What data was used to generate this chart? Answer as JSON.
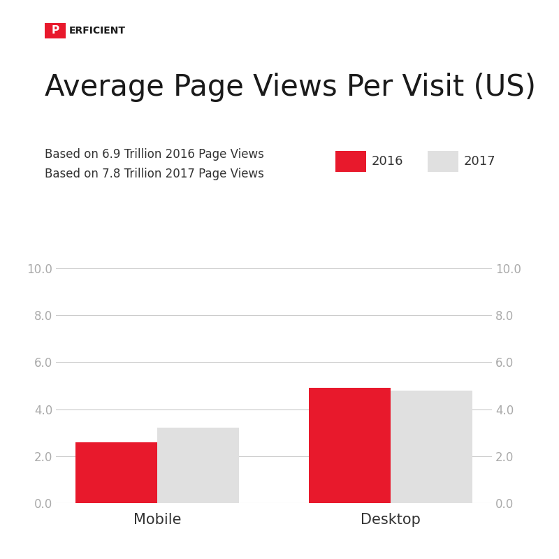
{
  "title": "Average Page Views Per Visit (US)",
  "subtitle1": "Based on 6.9 Trillion 2016 Page Views",
  "subtitle2": "Based on 7.8 Trillion 2017 Page Views",
  "categories": [
    "Mobile",
    "Desktop"
  ],
  "values_2016": [
    2.6,
    4.9
  ],
  "values_2017": [
    3.2,
    4.8
  ],
  "color_2016": "#e8192c",
  "color_2017": "#e0e0e0",
  "ylim": [
    0,
    10
  ],
  "yticks": [
    0.0,
    2.0,
    4.0,
    6.0,
    8.0,
    10.0
  ],
  "bar_width": 0.35,
  "background_color": "#ffffff",
  "grid_color": "#cccccc",
  "tick_color": "#aaaaaa",
  "label_color": "#333333",
  "title_fontsize": 30,
  "subtitle_fontsize": 12,
  "tick_fontsize": 12,
  "category_fontsize": 15,
  "legend_fontsize": 13,
  "perficient_red": "#e8192c",
  "perficient_dark": "#1a1a1a"
}
